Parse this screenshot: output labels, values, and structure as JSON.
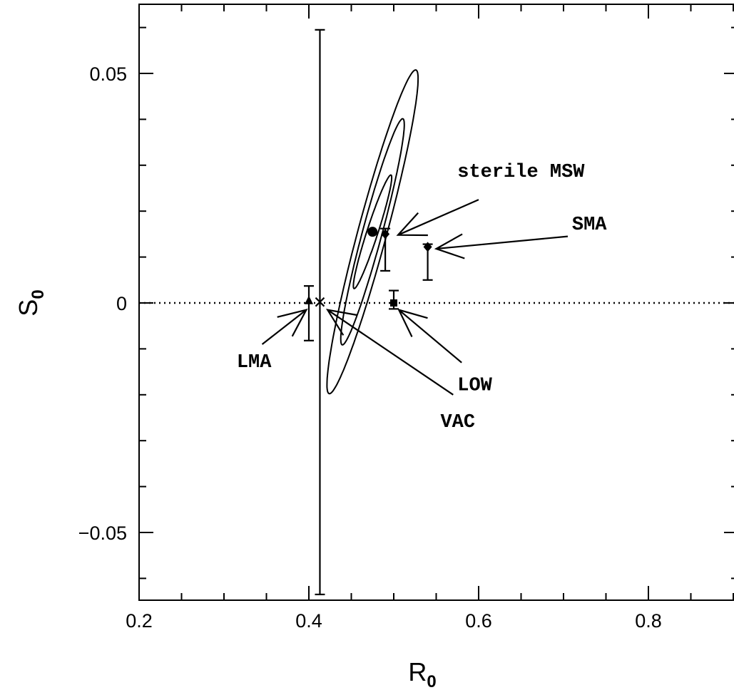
{
  "chart_data": {
    "type": "scatter",
    "xlabel": "R",
    "xlabel_sub": "0",
    "ylabel": "S",
    "ylabel_sub": "0",
    "xlim": [
      0.2,
      0.9
    ],
    "ylim": [
      -0.065,
      0.065
    ],
    "x_ticks": [
      {
        "value": 0.2,
        "label": "0.2"
      },
      {
        "value": 0.4,
        "label": "0.4"
      },
      {
        "value": 0.6,
        "label": "0.6"
      },
      {
        "value": 0.8,
        "label": "0.8"
      }
    ],
    "y_ticks": [
      {
        "value": 0.05,
        "label": "0.05"
      },
      {
        "value": 0,
        "label": "0"
      },
      {
        "value": -0.05,
        "label": "−0.05"
      }
    ],
    "x_minor_step": 0.05,
    "y_minor_step": 0.01,
    "reference_line_y": 0,
    "measurement": {
      "x": 0.475,
      "y": 0.0155,
      "contours": [
        {
          "a": 0.013,
          "b": 0.0065,
          "angle_deg": 72
        },
        {
          "a": 0.0255,
          "b": 0.0115,
          "angle_deg": 75
        },
        {
          "a": 0.0365,
          "b": 0.017,
          "angle_deg": 75
        }
      ]
    },
    "points": [
      {
        "name": "LMA",
        "marker": "triangle",
        "x": 0.4,
        "y": 0.0005,
        "err_low": -0.0082,
        "err_high": 0.0037
      },
      {
        "name": "VAC",
        "marker": "cross",
        "x": 0.413,
        "y": 0.0002,
        "err_low": -0.0635,
        "err_high": 0.0595
      },
      {
        "name": "LOW",
        "marker": "square",
        "x": 0.5,
        "y": 0.0,
        "err_low": -0.0013,
        "err_high": 0.0027
      },
      {
        "name": "sterile MSW",
        "marker": "diamond",
        "x": 0.49,
        "y": 0.015,
        "err_low": 0.007,
        "err_high": 0.0162
      },
      {
        "name": "SMA",
        "marker": "diamond",
        "x": 0.54,
        "y": 0.0122,
        "err_low": 0.005,
        "err_high": 0.0128
      }
    ],
    "annotations": [
      {
        "text": "sterile MSW",
        "text_x": 0.575,
        "text_y": 0.0275,
        "arrow_from": [
          0.6,
          0.0225
        ],
        "arrow_to": [
          0.505,
          0.0148
        ]
      },
      {
        "text": "SMA",
        "text_x": 0.71,
        "text_y": 0.016,
        "arrow_from": [
          0.705,
          0.0145
        ],
        "arrow_to": [
          0.55,
          0.0118
        ]
      },
      {
        "text": "LMA",
        "text_x": 0.315,
        "text_y": -0.014,
        "arrow_from": [
          0.345,
          -0.009
        ],
        "arrow_to": [
          0.397,
          -0.0015
        ]
      },
      {
        "text": "VAC",
        "text_x": 0.555,
        "text_y": -0.027,
        "arrow_from": [
          0.57,
          -0.02
        ],
        "arrow_to": [
          0.422,
          -0.0015
        ]
      },
      {
        "text": "LOW",
        "text_x": 0.575,
        "text_y": -0.019,
        "arrow_from": [
          0.58,
          -0.013
        ],
        "arrow_to": [
          0.506,
          -0.0015
        ]
      }
    ]
  }
}
